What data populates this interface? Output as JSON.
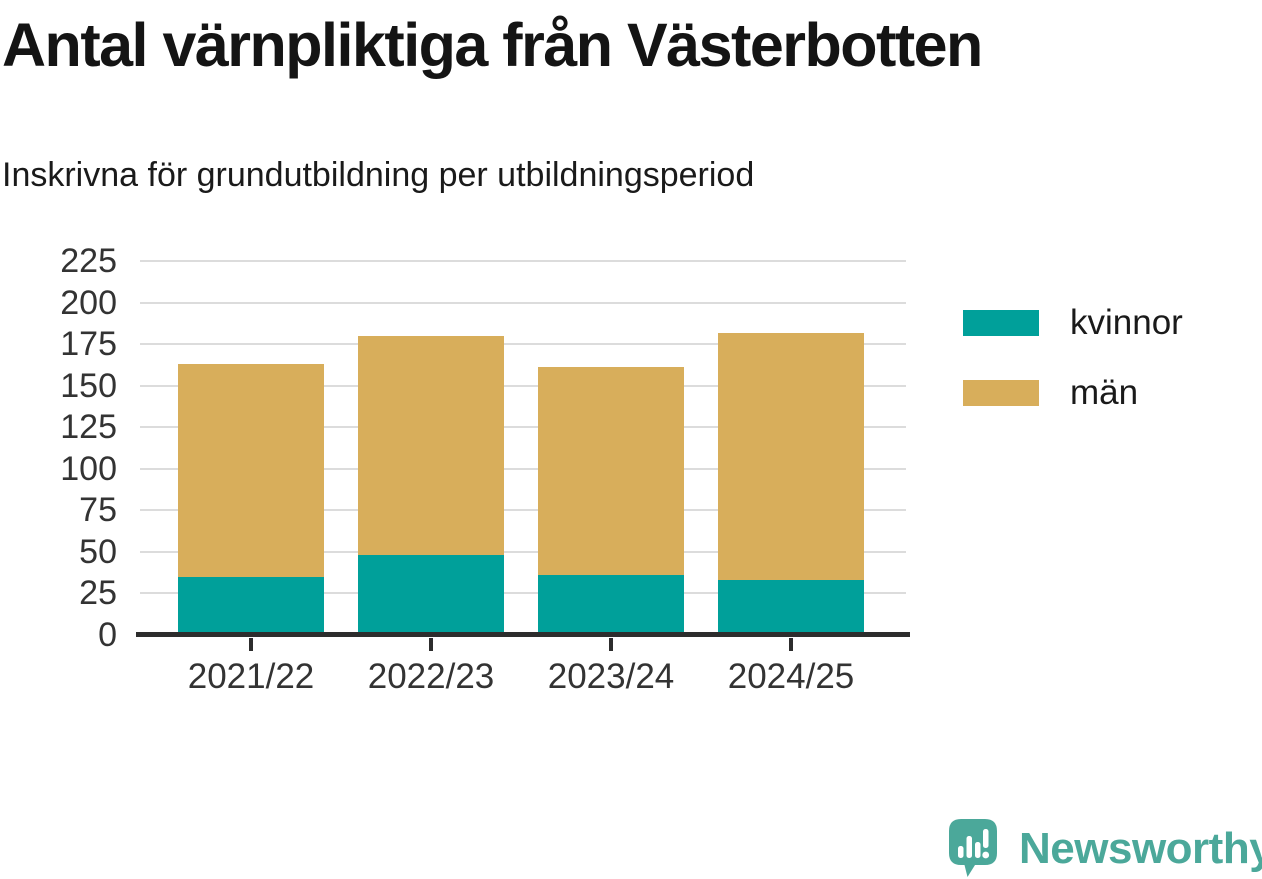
{
  "header": {
    "title": "Antal värnpliktiga från Västerbotten",
    "subtitle": "Inskrivna för grundutbildning per utbildningsperiod"
  },
  "chart_data": {
    "type": "bar",
    "stacked": true,
    "title": "Antal värnpliktiga från Västerbotten",
    "subtitle": "Inskrivna för grundutbildning per utbildningsperiod",
    "categories": [
      "2021/22",
      "2022/23",
      "2023/24",
      "2024/25"
    ],
    "series": [
      {
        "name": "kvinnor",
        "color": "#00a09a",
        "values": [
          35,
          48,
          36,
          33
        ]
      },
      {
        "name": "män",
        "color": "#d8ae5b",
        "values": [
          128,
          132,
          125,
          149
        ]
      }
    ],
    "stack_totals": [
      163,
      180,
      161,
      182
    ],
    "xlabel": "",
    "ylabel": "",
    "ylim": [
      0,
      225
    ],
    "yticks": [
      0,
      25,
      50,
      75,
      100,
      125,
      150,
      175,
      200,
      225
    ],
    "grid": "horizontal",
    "legend_position": "right"
  },
  "branding": {
    "logo_text": "Newsworthy",
    "logo_color": "#4ba89a"
  },
  "colors": {
    "background": "#ffffff",
    "axis": "#2d2d2d",
    "gridline": "#dcdcdc",
    "title_text": "#141414",
    "tick_label": "#333333"
  }
}
